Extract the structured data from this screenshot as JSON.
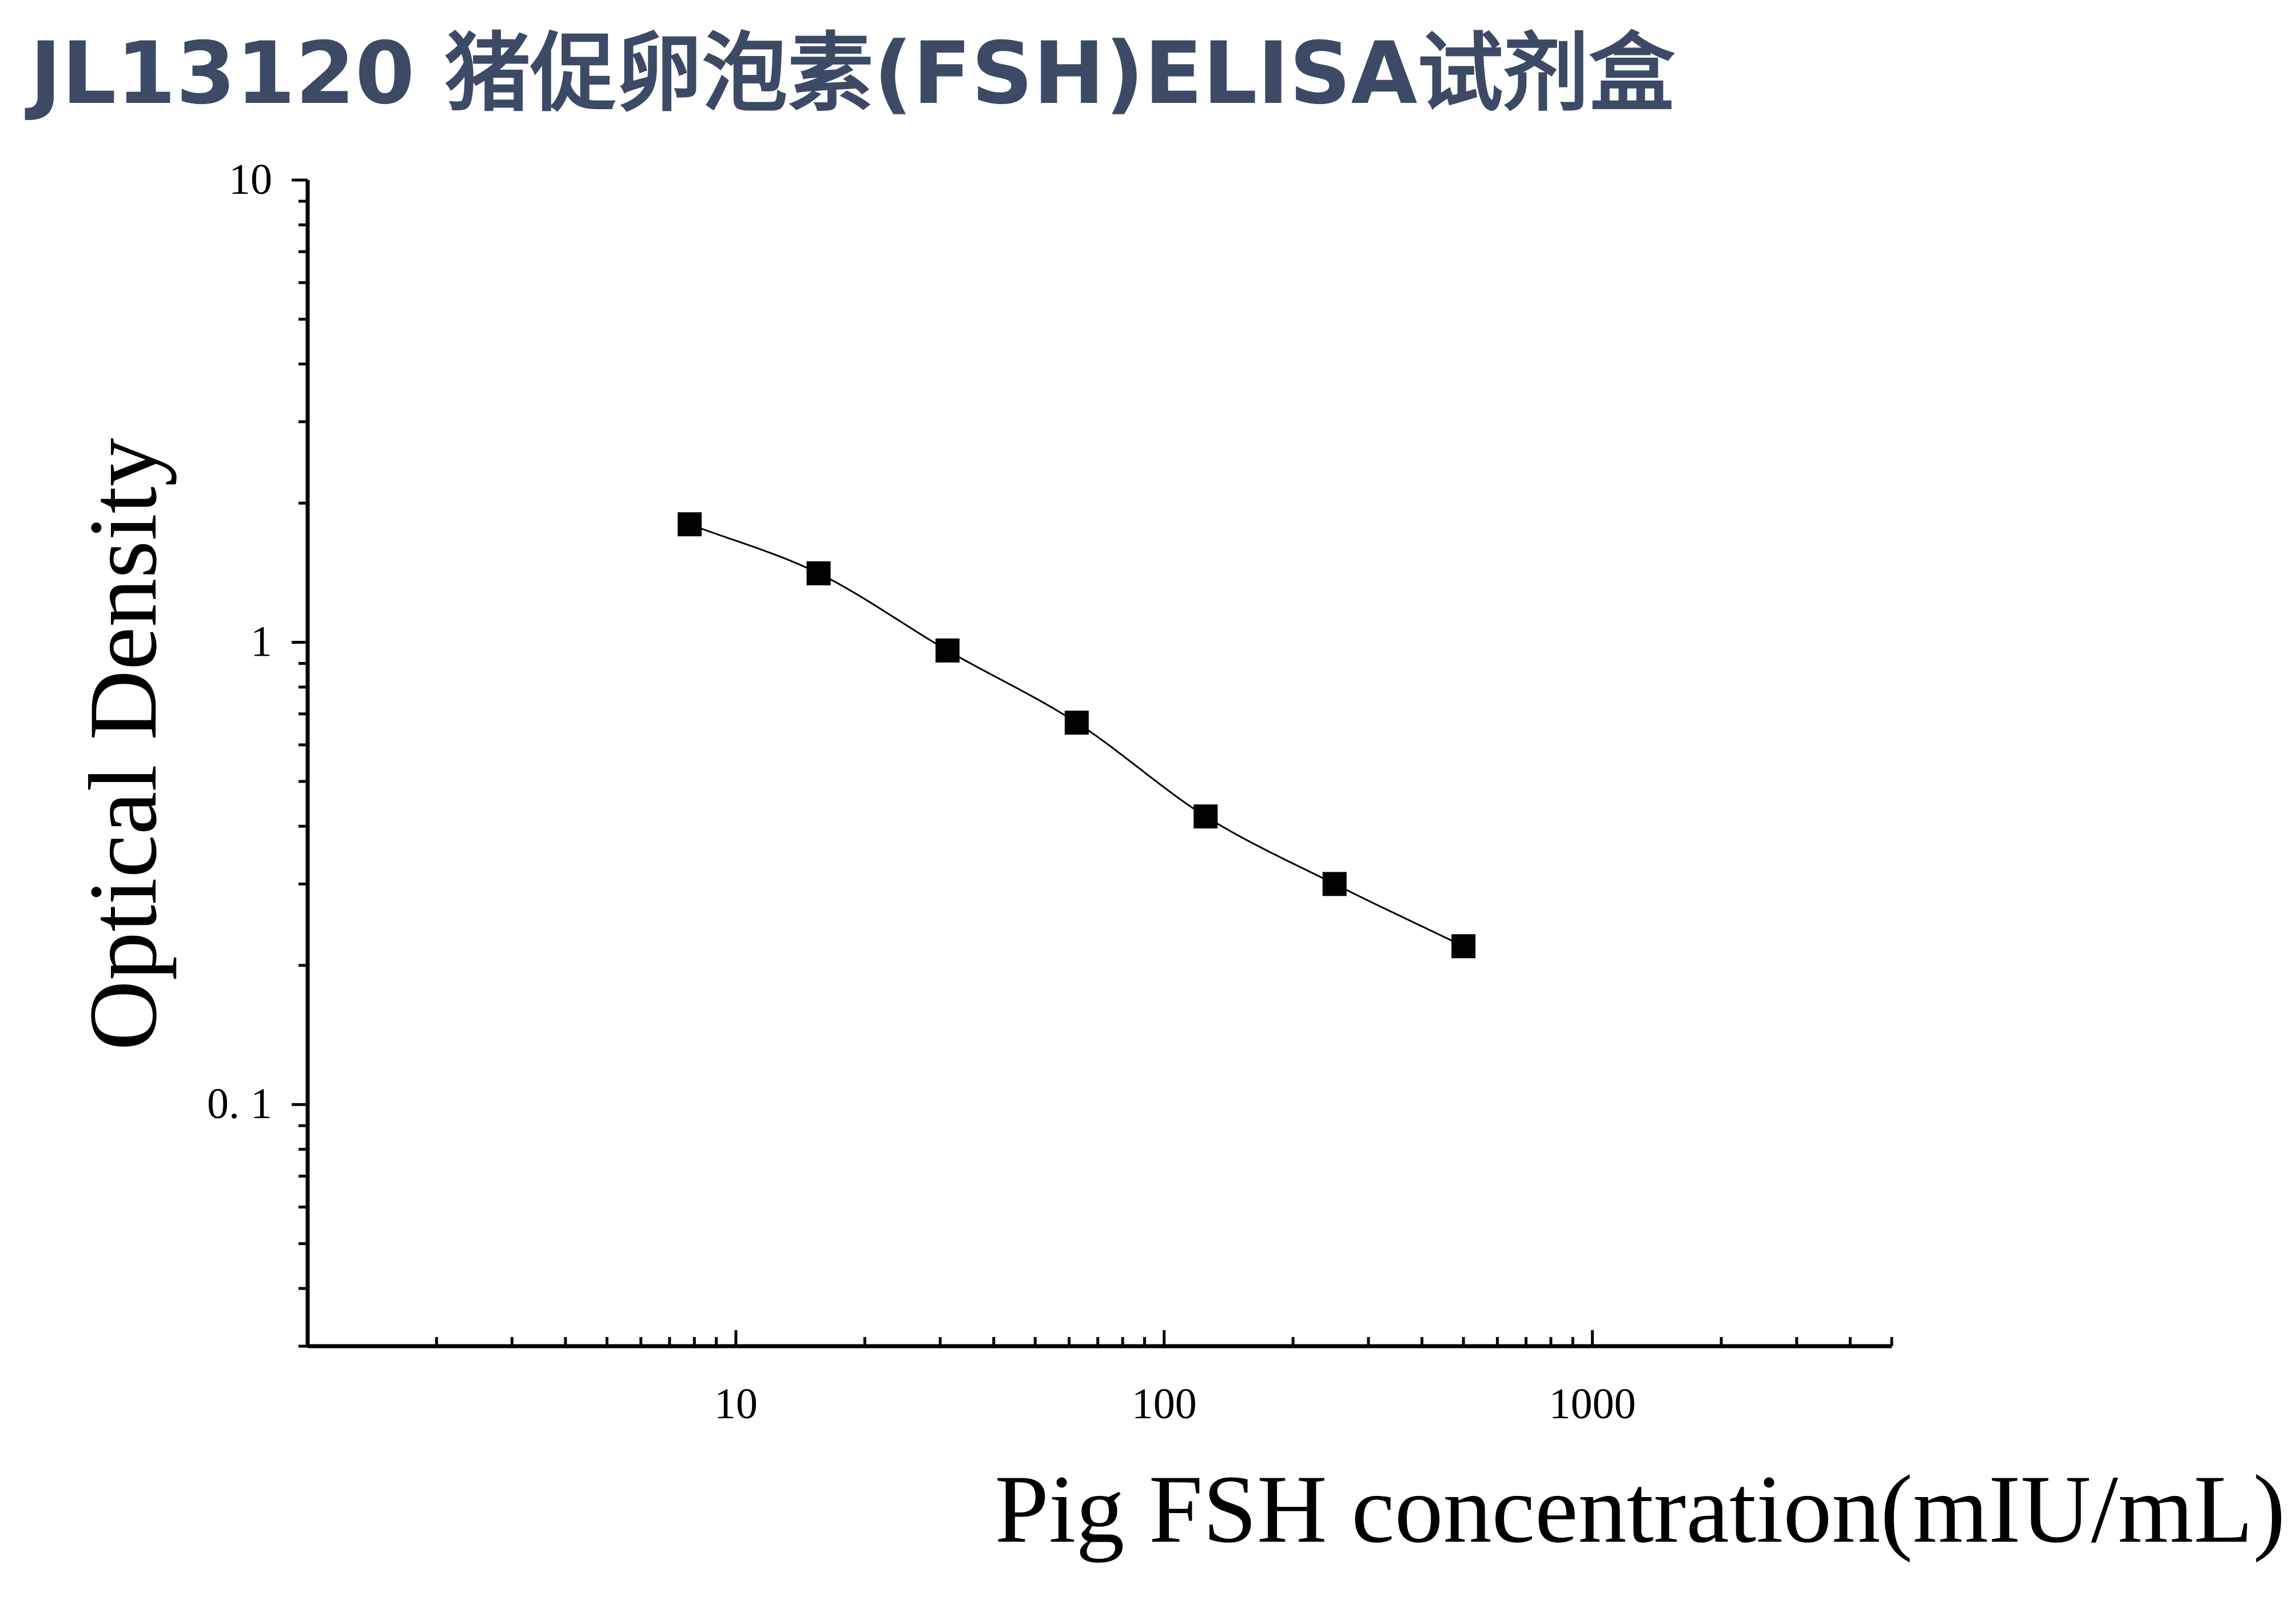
{
  "chart_data": {
    "type": "scatter",
    "title": "JL13120 猪促卵泡素(FSH)ELISA试剂盒",
    "xlabel": "Pig FSH concentration(mIU/mL)",
    "ylabel": "Optical Density",
    "x_scale": "log",
    "y_scale": "log",
    "xlim": [
      1,
      5000
    ],
    "ylim": [
      0.03,
      10
    ],
    "x_ticks": [
      10,
      100,
      1000
    ],
    "x_tick_labels": [
      "10",
      "100",
      "1000"
    ],
    "y_ticks": [
      0.1,
      1,
      10
    ],
    "y_tick_labels": [
      "0. 1",
      "1",
      "10"
    ],
    "grid": false,
    "legend": "none",
    "series": [
      {
        "x": [
          7.8,
          15.6,
          31.2,
          62.5,
          125,
          250,
          500
        ],
        "y": [
          1.8,
          1.41,
          0.96,
          0.67,
          0.42,
          0.3,
          0.22
        ],
        "marker": "square",
        "fit_line": "smooth curve"
      }
    ],
    "colors": {
      "title": "#3c4a66",
      "marks": "#000000",
      "axes": "#000000"
    }
  }
}
